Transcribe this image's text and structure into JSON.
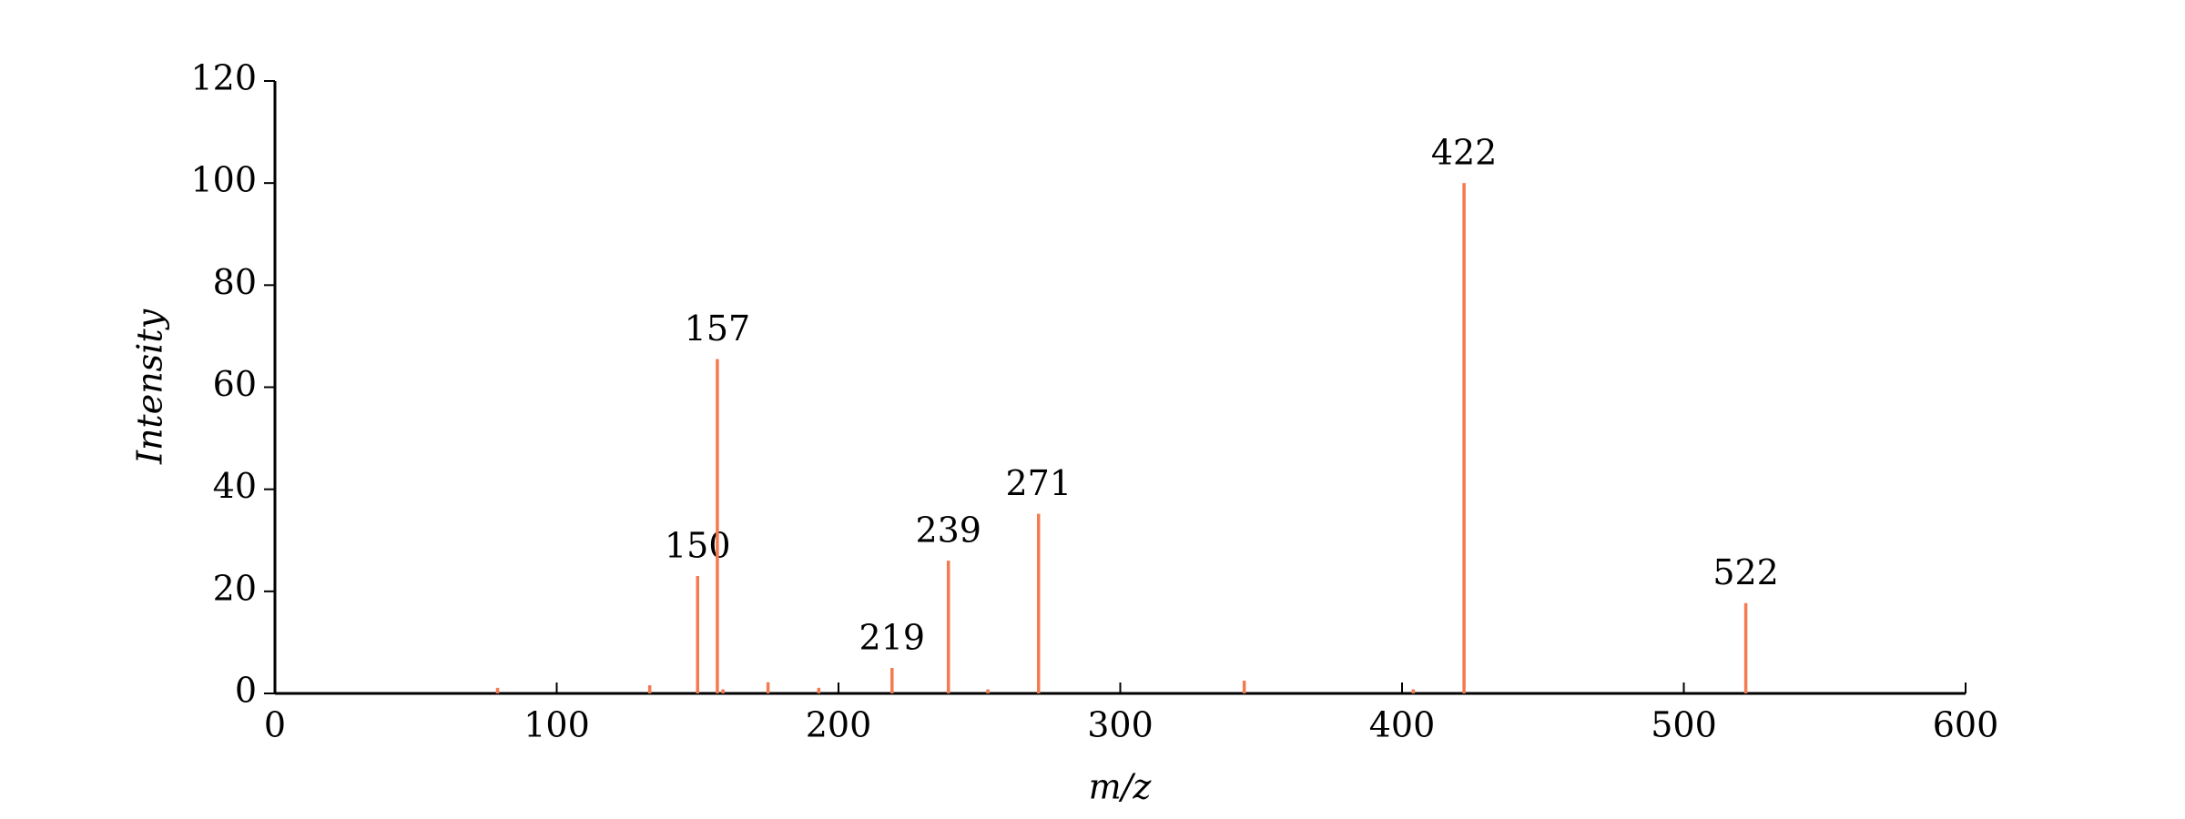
{
  "chart_data": {
    "type": "stem",
    "x_label": "m/z",
    "y_label": "Intensity",
    "xlim": [
      0,
      600
    ],
    "xticks": [
      0,
      100,
      200,
      300,
      400,
      500,
      600
    ],
    "ylim": [
      0,
      120
    ],
    "yticks": [
      0,
      20,
      40,
      60,
      80,
      100,
      120
    ],
    "grid": false,
    "series": [
      {
        "color": "#f47a4f",
        "labeled": true,
        "x": [
          150,
          157,
          219,
          239,
          271,
          422,
          522
        ],
        "values": [
          23,
          65.5,
          5,
          26,
          35.2,
          100,
          17.7
        ]
      },
      {
        "color": "#f47a4f",
        "labeled": false,
        "x": [
          79,
          133,
          159,
          175,
          193,
          253,
          344,
          404
        ],
        "values": [
          1.1,
          1.6,
          0.8,
          2.2,
          1.1,
          0.8,
          2.5,
          0.8
        ]
      }
    ]
  }
}
